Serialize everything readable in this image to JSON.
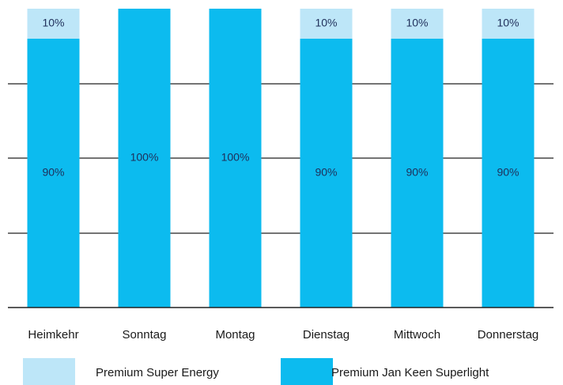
{
  "chart_data": {
    "type": "bar",
    "stacked": true,
    "normalized": true,
    "categories": [
      "Heimkehr",
      "Sonntag",
      "Montag",
      "Dienstag",
      "Mittwoch",
      "Donnerstag"
    ],
    "series": [
      {
        "name": "Premium Jan Keen Superlight",
        "values": [
          90,
          100,
          100,
          90,
          90,
          90
        ],
        "labels": [
          "90%",
          "100%",
          "100%",
          "90%",
          "90%",
          "90%"
        ],
        "color": "#0cbbef"
      },
      {
        "name": "Premium Super Energy",
        "values": [
          10,
          0,
          0,
          10,
          10,
          10
        ],
        "labels": [
          "10%",
          "",
          "",
          "10%",
          "10%",
          "10%"
        ],
        "color": "#bde6f8"
      }
    ],
    "ylim": [
      0,
      100
    ],
    "grid": true,
    "legend": "bottom",
    "legend_order": [
      "Premium Super Energy",
      "Premium Jan Keen Superlight"
    ]
  }
}
